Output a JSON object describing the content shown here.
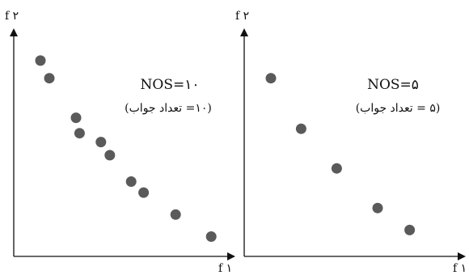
{
  "chart_data": [
    {
      "type": "scatter",
      "xlabel": "f ١",
      "ylabel": "f ٢",
      "annotations": [
        "NOS=١٠",
        "(١٠= تعداد جواب)"
      ],
      "points": [
        {
          "x": 1.5,
          "y": 8.9
        },
        {
          "x": 2.0,
          "y": 8.1
        },
        {
          "x": 3.5,
          "y": 6.3
        },
        {
          "x": 3.7,
          "y": 5.6
        },
        {
          "x": 4.9,
          "y": 5.2
        },
        {
          "x": 5.4,
          "y": 4.6
        },
        {
          "x": 6.6,
          "y": 3.4
        },
        {
          "x": 7.3,
          "y": 2.9
        },
        {
          "x": 9.1,
          "y": 1.9
        },
        {
          "x": 11.1,
          "y": 0.9
        }
      ],
      "xlim": [
        0,
        12
      ],
      "ylim": [
        0,
        10
      ]
    },
    {
      "type": "scatter",
      "xlabel": "f ١",
      "ylabel": "f ٢",
      "annotations": [
        "NOS=۵",
        "(۵ = تعداد جواب)"
      ],
      "points": [
        {
          "x": 1.5,
          "y": 8.1
        },
        {
          "x": 3.2,
          "y": 5.8
        },
        {
          "x": 5.2,
          "y": 4.0
        },
        {
          "x": 7.5,
          "y": 2.2
        },
        {
          "x": 9.3,
          "y": 1.2
        }
      ],
      "xlim": [
        0,
        12
      ],
      "ylim": [
        0,
        10
      ]
    }
  ]
}
